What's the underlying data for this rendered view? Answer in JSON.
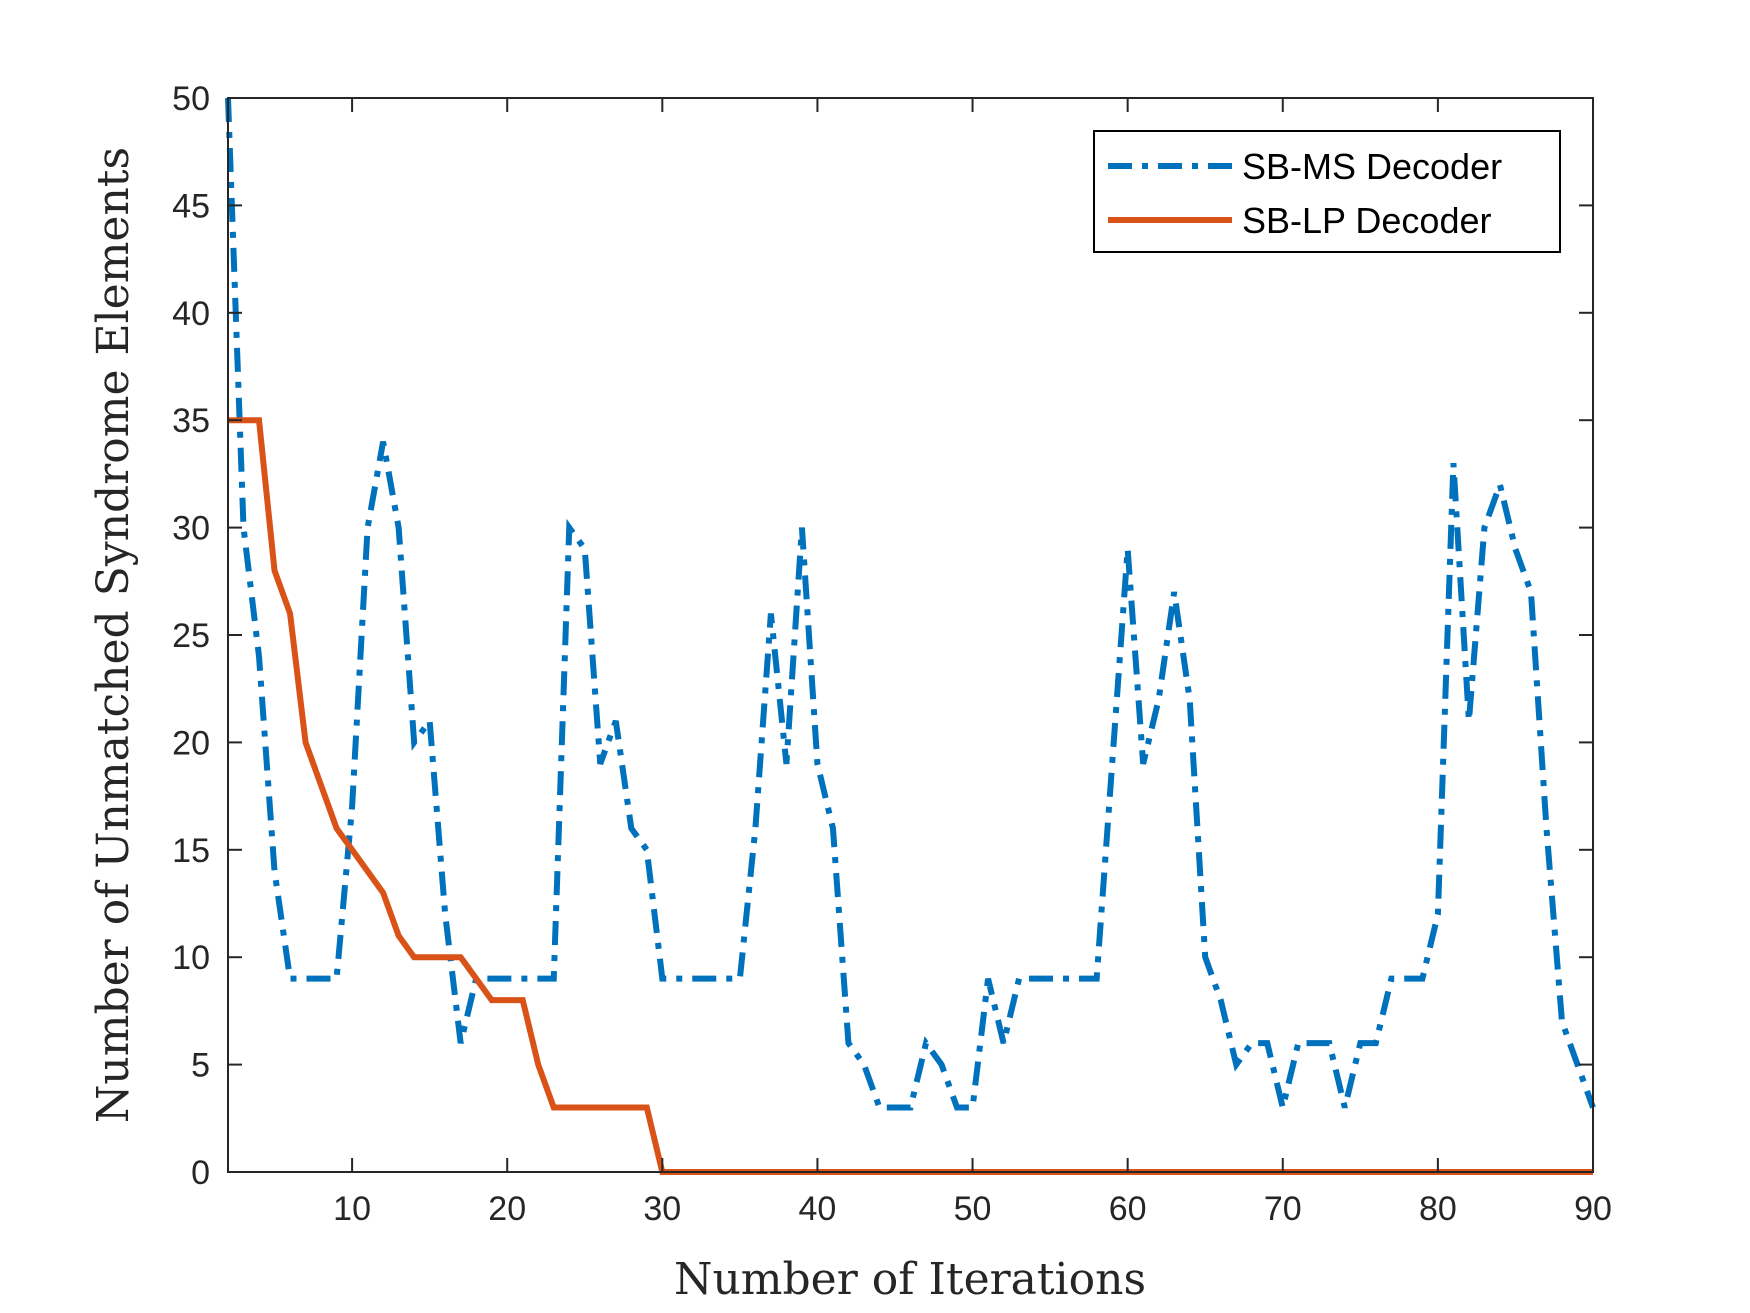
{
  "chart_data": {
    "type": "line",
    "title": "",
    "xlabel": "Number of Iterations",
    "ylabel": "Number of Unmatched Syndrome Elements",
    "xlim": [
      2,
      90
    ],
    "ylim": [
      0,
      50
    ],
    "xticks": [
      10,
      20,
      30,
      40,
      50,
      60,
      70,
      80,
      90
    ],
    "yticks": [
      0,
      5,
      10,
      15,
      20,
      25,
      30,
      35,
      40,
      45,
      50
    ],
    "grid": false,
    "legend_position": "top-right",
    "x": [
      2,
      3,
      4,
      5,
      6,
      7,
      8,
      9,
      10,
      11,
      12,
      13,
      14,
      15,
      16,
      17,
      18,
      19,
      20,
      21,
      22,
      23,
      24,
      25,
      26,
      27,
      28,
      29,
      30,
      31,
      32,
      33,
      34,
      35,
      36,
      37,
      38,
      39,
      40,
      41,
      42,
      43,
      44,
      45,
      46,
      47,
      48,
      49,
      50,
      51,
      52,
      53,
      54,
      55,
      56,
      57,
      58,
      59,
      60,
      61,
      62,
      63,
      64,
      65,
      66,
      67,
      68,
      69,
      70,
      71,
      72,
      73,
      74,
      75,
      76,
      77,
      78,
      79,
      80,
      81,
      82,
      83,
      84,
      85,
      86,
      87,
      88,
      89,
      90
    ],
    "series": [
      {
        "name": "SB-MS Decoder",
        "color": "#0072BD",
        "style": "dash-dot",
        "values": [
          50,
          30,
          24,
          14,
          9,
          9,
          9,
          9,
          17,
          30,
          34,
          30,
          20,
          21,
          12,
          6,
          9,
          9,
          9,
          9,
          9,
          9,
          30,
          29,
          19,
          21,
          16,
          15,
          9,
          9,
          9,
          9,
          9,
          9,
          16,
          26,
          19,
          30,
          19,
          16,
          6,
          5,
          3,
          3,
          3,
          6,
          5,
          3,
          3,
          9,
          6,
          9,
          9,
          9,
          9,
          9,
          9,
          19,
          29,
          19,
          22,
          27,
          22,
          10,
          8,
          5,
          6,
          6,
          3,
          6,
          6,
          6,
          3,
          6,
          6,
          9,
          9,
          9,
          12,
          33,
          21,
          30,
          32,
          29,
          27,
          16,
          7,
          5,
          3
        ]
      },
      {
        "name": "SB-LP Decoder",
        "color": "#D95319",
        "style": "solid",
        "values": [
          35,
          35,
          35,
          28,
          26,
          20,
          18,
          16,
          15,
          14,
          13,
          11,
          10,
          10,
          10,
          10,
          9,
          8,
          8,
          8,
          5,
          3,
          3,
          3,
          3,
          3,
          3,
          3,
          0,
          0,
          0,
          0,
          0,
          0,
          0,
          0,
          0,
          0,
          0,
          0,
          0,
          0,
          0,
          0,
          0,
          0,
          0,
          0,
          0,
          0,
          0,
          0,
          0,
          0,
          0,
          0,
          0,
          0,
          0,
          0,
          0,
          0,
          0,
          0,
          0,
          0,
          0,
          0,
          0,
          0,
          0,
          0,
          0,
          0,
          0,
          0,
          0,
          0,
          0,
          0,
          0,
          0,
          0,
          0,
          0,
          0,
          0,
          0,
          0
        ]
      }
    ]
  }
}
